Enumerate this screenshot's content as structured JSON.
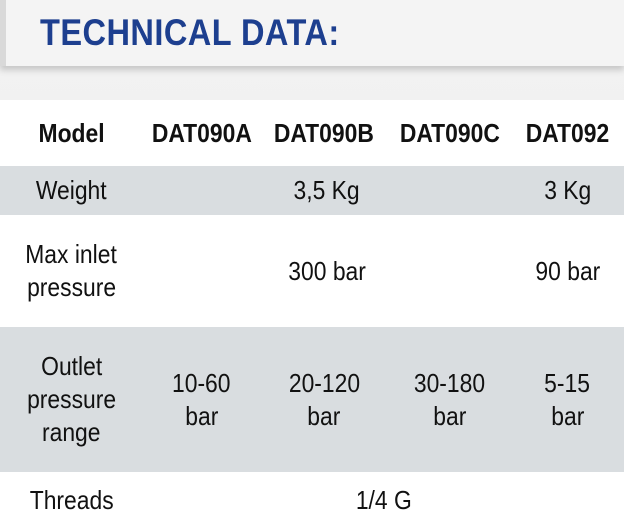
{
  "title": "TECHNICAL DATA:",
  "table": {
    "header": [
      "Model",
      "DAT090A",
      "DAT090B",
      "DAT090C",
      "DAT092"
    ],
    "weight": {
      "label": "Weight",
      "b": "3,5 Kg",
      "d": "3 Kg"
    },
    "inlet": {
      "label_1": "Max inlet",
      "label_2": "pressure",
      "b": "300 bar",
      "d": "90 bar"
    },
    "outlet": {
      "label_1": "Outlet",
      "label_2": "pressure",
      "label_3": "range",
      "a_1": "10-60",
      "a_2": "bar",
      "b_1": "20-120",
      "b_2": "bar",
      "c_1": "30-180",
      "c_2": "bar",
      "d_1": "5-15",
      "d_2": "bar"
    },
    "threads": {
      "label": "Threads",
      "value": "1/4 G"
    }
  },
  "colors": {
    "title": "#1d3f8f",
    "band": "#d9dde0"
  }
}
